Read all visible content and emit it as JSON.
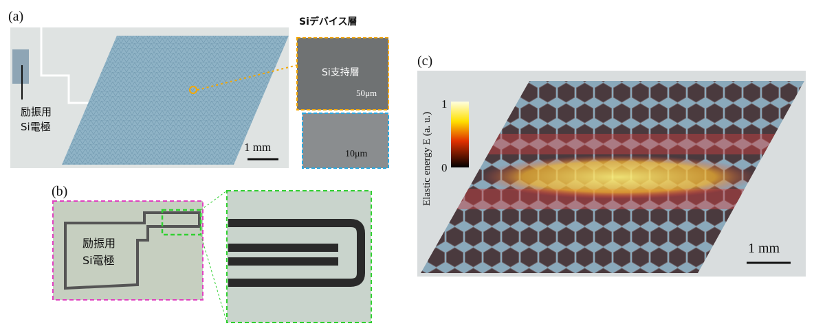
{
  "panels": {
    "a": {
      "label": "(a)",
      "device_layer": "Siデバイス層",
      "support_layer": "Si支持層",
      "scale_inset1": "50μm",
      "scale_inset2": "10μm",
      "electrode_line1": "励振用",
      "electrode_line2": "Si電極",
      "scale": "1 mm"
    },
    "b": {
      "label": "(b)",
      "electrode_line1": "励振用",
      "electrode_line2": "Si電極"
    },
    "c": {
      "label": "(c)",
      "colorbar_label": "Elastic energy E (a. u.)",
      "colorbar_max": 1,
      "colorbar_min": 0,
      "scale": "1 mm"
    }
  }
}
